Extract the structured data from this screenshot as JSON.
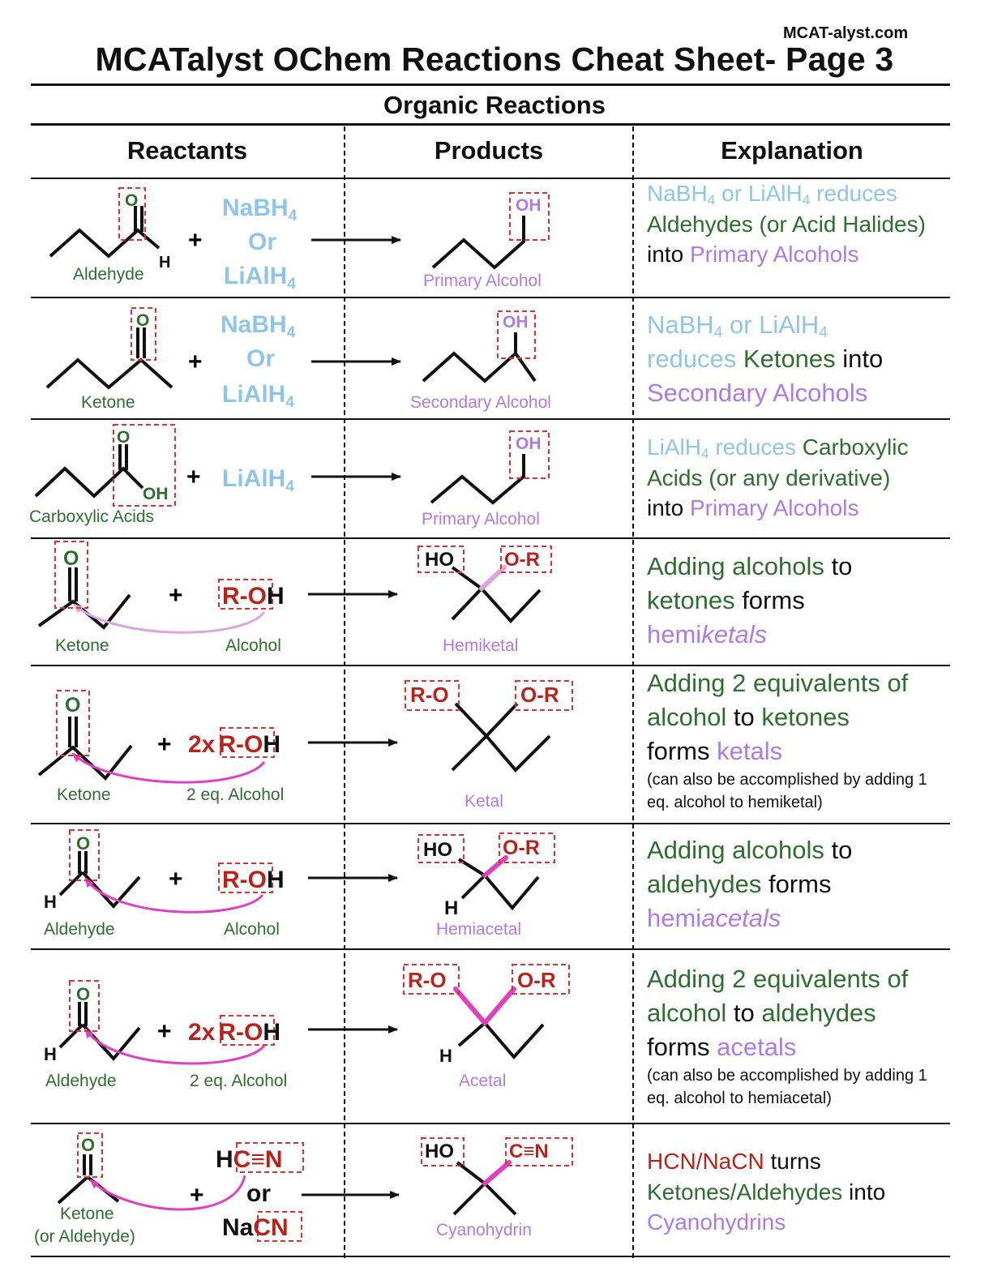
{
  "site": "MCAT-alyst.com",
  "title": "MCATalyst OChem Reactions Cheat Sheet- Page 3",
  "subtitle": "Organic Reactions",
  "columns": {
    "reactants": "Reactants",
    "products": "Products",
    "explanation": "Explanation"
  },
  "atoms": {
    "O": "O",
    "OH": "OH",
    "H": "H",
    "HO": "HO",
    "RO": "R-O",
    "OR": "O-R",
    "CN": "C≡N",
    "plus": "+",
    "or": "or",
    "NaBH": "NaBH",
    "LiAlH": "LiAlH",
    "Or": "Or",
    "four": "4",
    "ROpart": "R-O",
    "Hpart": "H",
    "twox": "2x",
    "Na": "Na",
    "CNpart": "CN",
    "HCN_H": "H"
  },
  "rows": [
    {
      "reactant_label": "Aldehyde",
      "product_label": "Primary Alcohol"
    },
    {
      "reactant_label": "Ketone",
      "product_label": "Secondary Alcohol"
    },
    {
      "reactant_label": "Carboxylic Acids",
      "product_label": "Primary Alcohol"
    },
    {
      "reactant_label": "Ketone",
      "reagent_label": "Alcohol",
      "product_label": "Hemiketal"
    },
    {
      "reactant_label": "Ketone",
      "reagent_label": "2 eq. Alcohol",
      "product_label": "Ketal"
    },
    {
      "reactant_label": "Aldehyde",
      "reagent_label": "Alcohol",
      "product_label": "Hemiacetal"
    },
    {
      "reactant_label": "Aldehyde",
      "reagent_label": "2 eq. Alcohol",
      "product_label": "Acetal"
    },
    {
      "reactant_label": "Ketone",
      "reactant_label2": "(or Aldehyde)",
      "product_label": "Cyanohydrin"
    }
  ],
  "explanations": {
    "r1": {
      "a": "NaBH",
      "b": "4",
      "c": " or LiAlH",
      "d": "4",
      "e": " reduces ",
      "f": "Aldehydes (or Acid Halides)",
      "g": " into ",
      "h": "Primary Alcohols"
    },
    "r2": {
      "a": "NaBH",
      "b": "4",
      "c": " or LiAlH",
      "d": "4",
      "e": "reduces",
      "f": " Ketones",
      "g": " into ",
      "h": "Secondary Alcohols"
    },
    "r3": {
      "a": "LiAlH",
      "b": "4",
      "c": " reduces ",
      "f": "Carboxylic Acids (or any derivative)",
      "g": "into ",
      "h": "Primary Alcohols"
    },
    "r4": {
      "a": "Adding alcohols",
      "b": " to ",
      "c": "ketones",
      "d": " forms ",
      "e": "hemi",
      "f": "ketals"
    },
    "r5": {
      "a": "Adding 2 equivalents of alcohol",
      "b": " to ",
      "c": "ketones",
      "d": "forms ",
      "e": "ketals",
      "note": "(can also be accomplished by adding 1 eq. alcohol to hemiketal)"
    },
    "r6": {
      "a": "Adding alcohols",
      "b": " to ",
      "c": "aldehydes",
      "d": " forms ",
      "e": "hemi",
      "f": "acetals"
    },
    "r7": {
      "a": "Adding 2 equivalents of alcohol",
      "b": " to ",
      "c": "aldehydes",
      "d": "forms ",
      "e": "acetals",
      "note": "(can also be accomplished by adding 1 eq. alcohol to hemiacetal)"
    },
    "r8": {
      "a": "HCN/NaCN",
      "b": " turns ",
      "c": "Ketones/Aldehydes",
      "d": " into ",
      "e": "Cyanohydrins"
    }
  },
  "colors": {
    "reagent_blue": "#8fc5e8",
    "green": "#2e6e2e",
    "purple": "#b07ae6",
    "red": "#b8231b",
    "pink": "#e040c0",
    "box_red": "#e03030"
  }
}
